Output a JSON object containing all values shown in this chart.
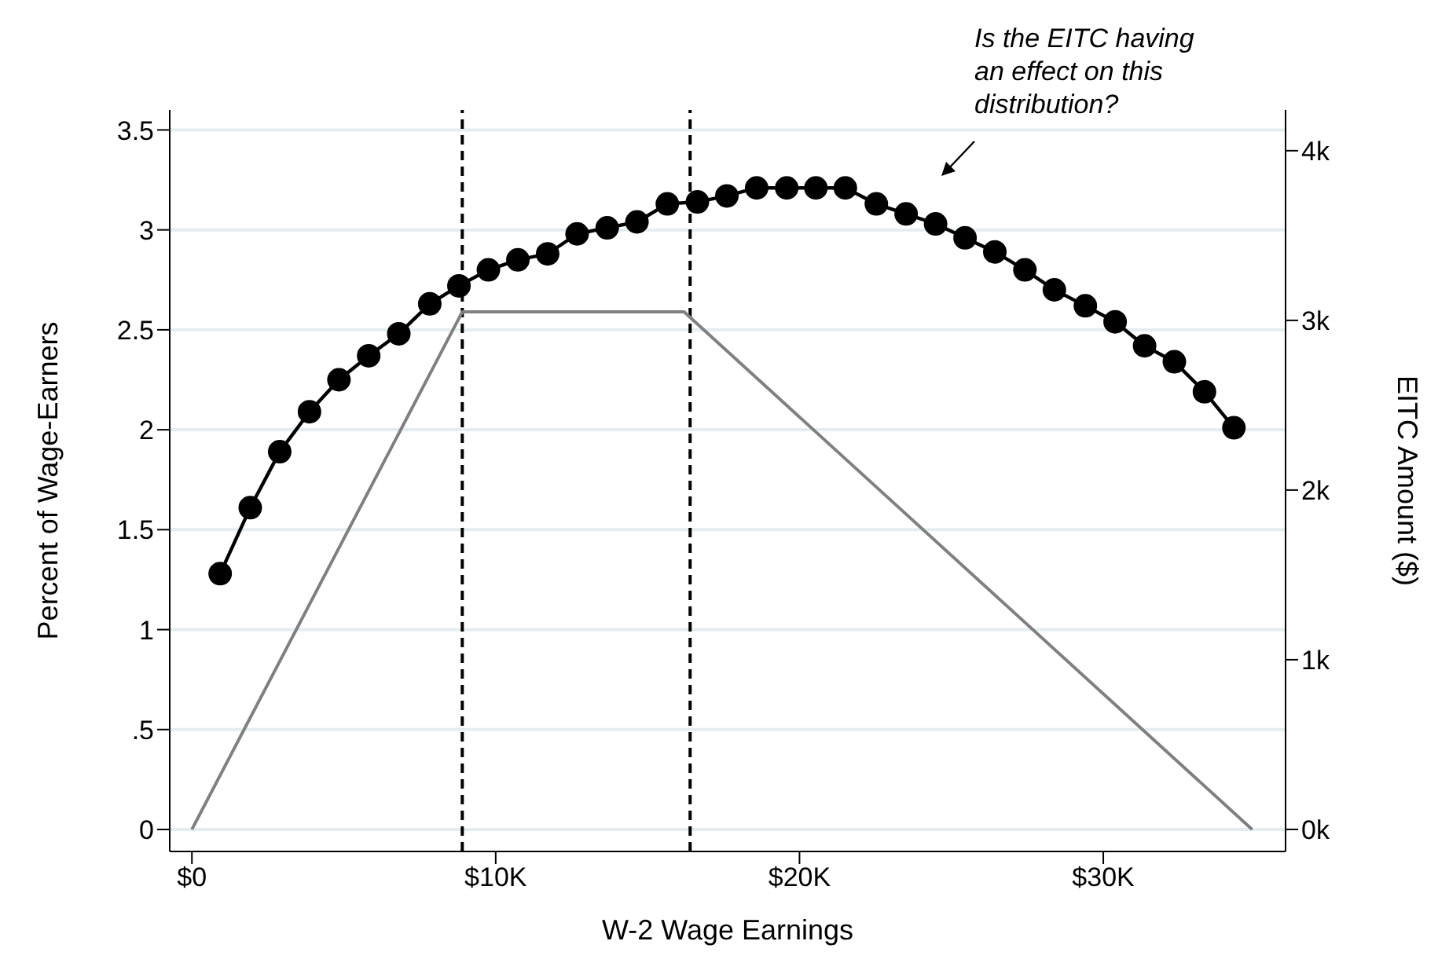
{
  "chart_data": {
    "type": "line",
    "xlabel": "W-2 Wage Earnings",
    "ylabel": "Percent of Wage-Earners",
    "y2label": "EITC Amount ($)",
    "x": [
      930,
      1920,
      2890,
      3870,
      4840,
      5820,
      6810,
      7830,
      8790,
      9760,
      10730,
      11710,
      12680,
      13670,
      14650,
      15650,
      16640,
      17610,
      18590,
      19580,
      20540,
      21510,
      22530,
      23510,
      24480,
      25450,
      26430,
      27420,
      28390,
      29410,
      30390,
      31360,
      32340,
      33330,
      34300
    ],
    "series": [
      {
        "color": "#000000",
        "marker": "circle",
        "values": [
          1.28,
          1.61,
          1.89,
          2.09,
          2.25,
          2.37,
          2.48,
          2.63,
          2.72,
          2.8,
          2.85,
          2.88,
          2.98,
          3.01,
          3.04,
          3.13,
          3.14,
          3.17,
          3.21,
          3.21,
          3.21,
          3.21,
          3.13,
          3.08,
          3.03,
          2.96,
          2.89,
          2.8,
          2.7,
          2.62,
          2.54,
          2.42,
          2.34,
          2.19,
          2.01
        ]
      },
      {
        "color": "#808080",
        "marker": "none",
        "axis": "y2",
        "x": [
          0,
          8900,
          16200,
          34900
        ],
        "values": [
          0,
          3050,
          3050,
          0
        ]
      }
    ],
    "xlim": [
      -730,
      36000
    ],
    "xticks": [
      {
        "value": 0,
        "label": "$0"
      },
      {
        "value": 10000,
        "label": "$10K"
      },
      {
        "value": 20000,
        "label": "$20K"
      },
      {
        "value": 30000,
        "label": "$30K"
      }
    ],
    "ylim": [
      -0.11,
      3.6
    ],
    "yticks": [
      0,
      {
        "value": 0.5,
        "label": ".5"
      },
      1,
      1.5,
      2,
      2.5,
      3,
      3.5
    ],
    "y2lim": [
      -130,
      4240
    ],
    "y2ticks": [
      {
        "value": 0,
        "label": "0k"
      },
      {
        "value": 1000,
        "label": "1k"
      },
      {
        "value": 2000,
        "label": "2k"
      },
      {
        "value": 3000,
        "label": "3k"
      },
      {
        "value": 4000,
        "label": "4k"
      }
    ],
    "ref_lines": [
      {
        "axis": "x",
        "value": 8900,
        "color": "#000000",
        "line_style": "dashed"
      },
      {
        "axis": "x",
        "value": 16400,
        "color": "#000000",
        "line_style": "dashed"
      }
    ],
    "annotations": [
      "Is the EITC having an effect on this distribution?"
    ],
    "grid": "y",
    "legend": false
  }
}
